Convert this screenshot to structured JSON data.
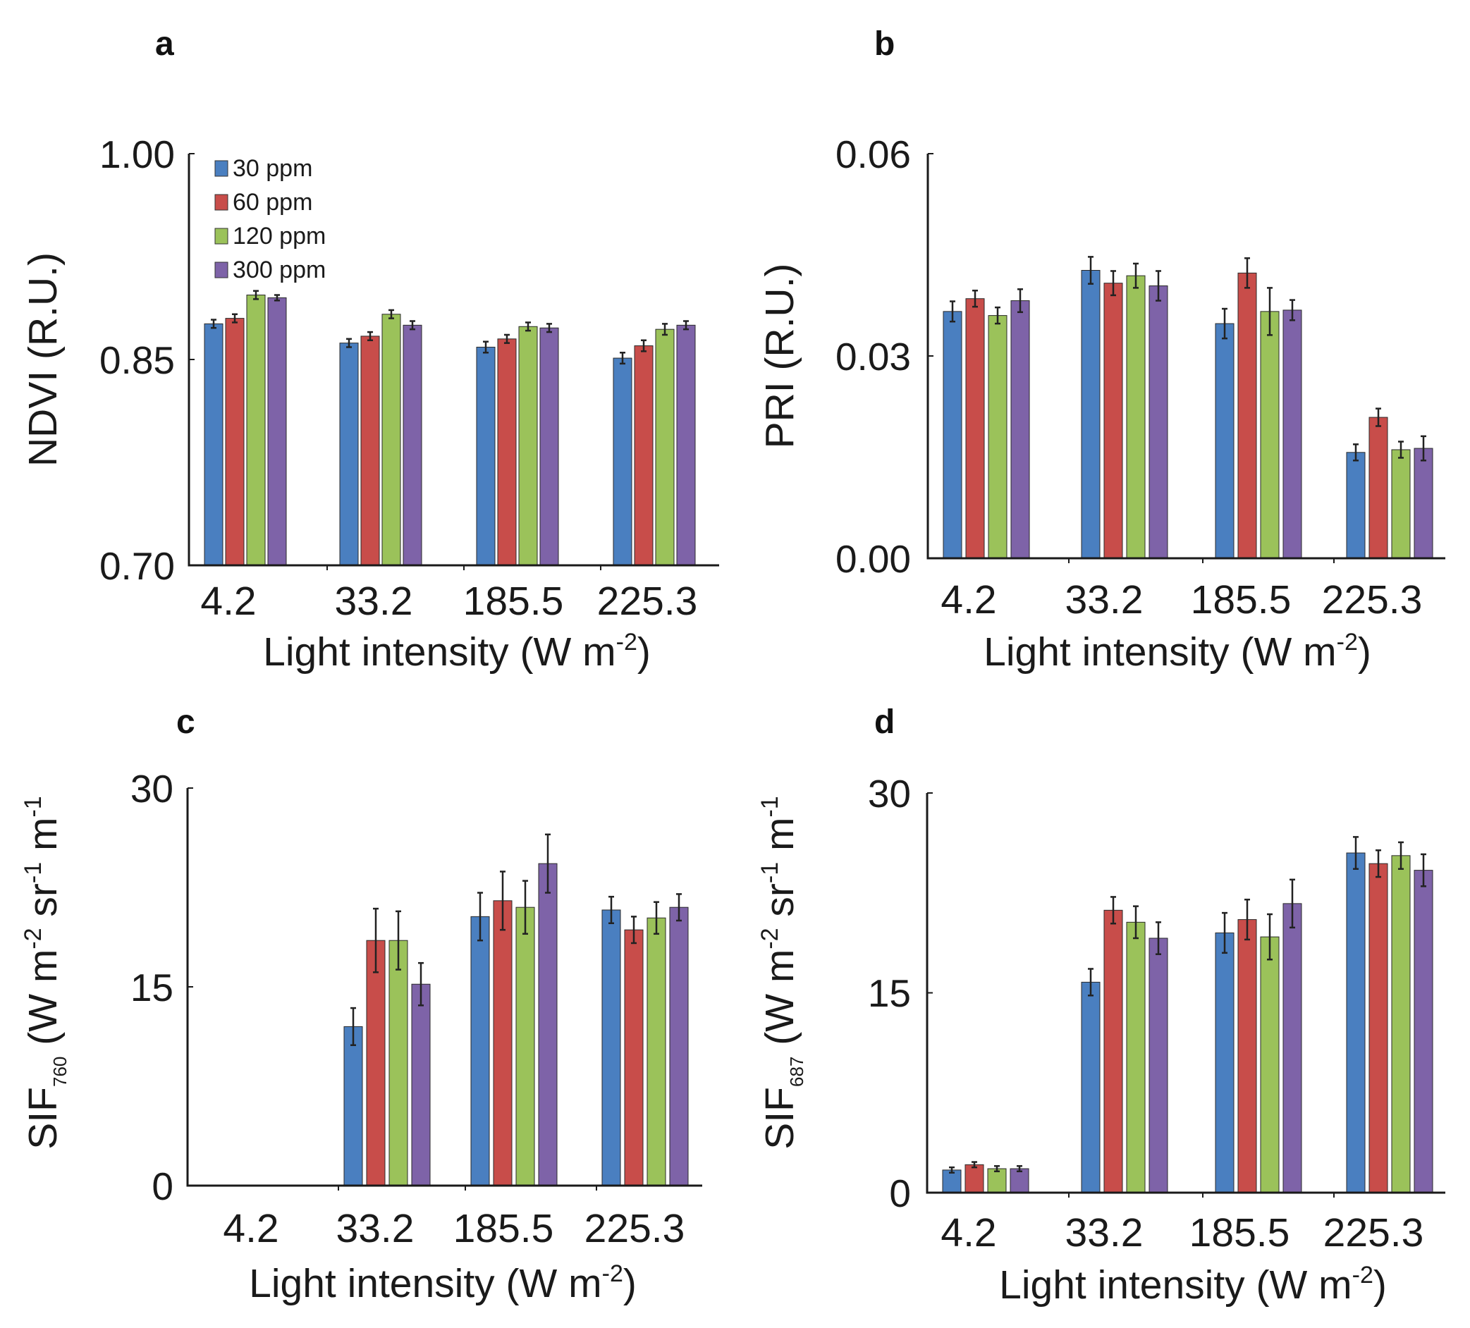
{
  "colors": {
    "s30": "#4a7fc0",
    "s60": "#c84d4a",
    "s120": "#9bc25a",
    "s300": "#7e63a8"
  },
  "legend": [
    "30 ppm",
    "60 ppm",
    "120 ppm",
    "300 ppm"
  ],
  "chart_data": [
    {
      "panel": "a",
      "type": "bar",
      "categories": [
        "4.2",
        "33.2",
        "185.5",
        "225.3"
      ],
      "xlabel_main": "Light intensity (W m",
      "xlabel_sup": "-2",
      "xlabel_end": ")",
      "ylabel": "NDVI (R.U.)",
      "ylim": [
        0.7,
        1.0
      ],
      "yticks": [
        "0.70",
        "0.85",
        "1.00"
      ],
      "series": [
        {
          "name": "30 ppm",
          "values": [
            0.876,
            0.862,
            0.859,
            0.851
          ],
          "err": [
            0.003,
            0.003,
            0.004,
            0.004
          ]
        },
        {
          "name": "60 ppm",
          "values": [
            0.88,
            0.867,
            0.865,
            0.86
          ],
          "err": [
            0.003,
            0.003,
            0.003,
            0.004
          ]
        },
        {
          "name": "120 ppm",
          "values": [
            0.897,
            0.883,
            0.874,
            0.872
          ],
          "err": [
            0.003,
            0.003,
            0.003,
            0.004
          ]
        },
        {
          "name": "300 ppm",
          "values": [
            0.895,
            0.875,
            0.873,
            0.875
          ],
          "err": [
            0.002,
            0.003,
            0.003,
            0.003
          ]
        }
      ]
    },
    {
      "panel": "b",
      "type": "bar",
      "categories": [
        "4.2",
        "33.2",
        "185.5",
        "225.3"
      ],
      "xlabel_main": "Light intensity (W m",
      "xlabel_sup": "-2",
      "xlabel_end": ")",
      "ylabel": "PRI (R.U.)",
      "ylim": [
        0.0,
        0.06
      ],
      "yticks": [
        "0.00",
        "0.03",
        "0.06"
      ],
      "series": [
        {
          "name": "30 ppm",
          "values": [
            0.0366,
            0.0427,
            0.0348,
            0.0157
          ],
          "err": [
            0.0015,
            0.002,
            0.0022,
            0.0012
          ]
        },
        {
          "name": "60 ppm",
          "values": [
            0.0385,
            0.0408,
            0.0423,
            0.0209
          ],
          "err": [
            0.0012,
            0.0018,
            0.0022,
            0.0013
          ]
        },
        {
          "name": "120 ppm",
          "values": [
            0.036,
            0.0419,
            0.0366,
            0.0161
          ],
          "err": [
            0.0012,
            0.0018,
            0.0035,
            0.0012
          ]
        },
        {
          "name": "300 ppm",
          "values": [
            0.0382,
            0.0404,
            0.0368,
            0.0163
          ],
          "err": [
            0.0017,
            0.0022,
            0.0015,
            0.0018
          ]
        }
      ]
    },
    {
      "panel": "c",
      "type": "bar",
      "categories": [
        "4.2",
        "33.2",
        "185.5",
        "225.3"
      ],
      "xlabel_main": "Light intensity (W m",
      "xlabel_sup": "-2",
      "xlabel_end": ")",
      "ylabel_main": "SIF",
      "ylabel_sub": "760",
      "ylabel_rest": " (W m",
      "ylabel_sup1": "-2",
      "ylabel_mid": " sr",
      "ylabel_sup2": "-1",
      "ylabel_end": " m",
      "ylabel_sup3": "-1",
      "ylim": [
        0,
        30
      ],
      "yticks": [
        "0",
        "15",
        "30"
      ],
      "series": [
        {
          "name": "30 ppm",
          "values": [
            0,
            12.0,
            20.3,
            20.8
          ],
          "err": [
            0,
            1.4,
            1.8,
            1.0
          ]
        },
        {
          "name": "60 ppm",
          "values": [
            0,
            18.5,
            21.5,
            19.3
          ],
          "err": [
            0,
            2.4,
            2.2,
            1.0
          ]
        },
        {
          "name": "120 ppm",
          "values": [
            0,
            18.5,
            21.0,
            20.2
          ],
          "err": [
            0,
            2.2,
            2.0,
            1.2
          ]
        },
        {
          "name": "300 ppm",
          "values": [
            0,
            15.2,
            24.3,
            21.0
          ],
          "err": [
            0,
            1.6,
            2.2,
            1.0
          ]
        }
      ]
    },
    {
      "panel": "d",
      "type": "bar",
      "categories": [
        "4.2",
        "33.2",
        "185.5",
        "225.3"
      ],
      "xlabel_main": "Light intensity (W m",
      "xlabel_sup": "-2",
      "xlabel_end": ")",
      "ylabel_main": "SIF",
      "ylabel_sub": "687",
      "ylabel_rest": " (W m",
      "ylabel_sup1": "-2",
      "ylabel_mid": " sr",
      "ylabel_sup2": "-1",
      "ylabel_end": " m",
      "ylabel_sup3": "-1",
      "ylim": [
        0,
        30
      ],
      "yticks": [
        "0",
        "15",
        "30"
      ],
      "series": [
        {
          "name": "30 ppm",
          "values": [
            1.7,
            15.8,
            19.5,
            25.5
          ],
          "err": [
            0.2,
            1.0,
            1.5,
            1.2
          ]
        },
        {
          "name": "60 ppm",
          "values": [
            2.1,
            21.2,
            20.5,
            24.7
          ],
          "err": [
            0.2,
            1.0,
            1.5,
            1.0
          ]
        },
        {
          "name": "120 ppm",
          "values": [
            1.8,
            20.3,
            19.2,
            25.3
          ],
          "err": [
            0.2,
            1.2,
            1.7,
            1.0
          ]
        },
        {
          "name": "300 ppm",
          "values": [
            1.8,
            19.1,
            21.7,
            24.2
          ],
          "err": [
            0.2,
            1.2,
            1.8,
            1.2
          ]
        }
      ]
    }
  ]
}
